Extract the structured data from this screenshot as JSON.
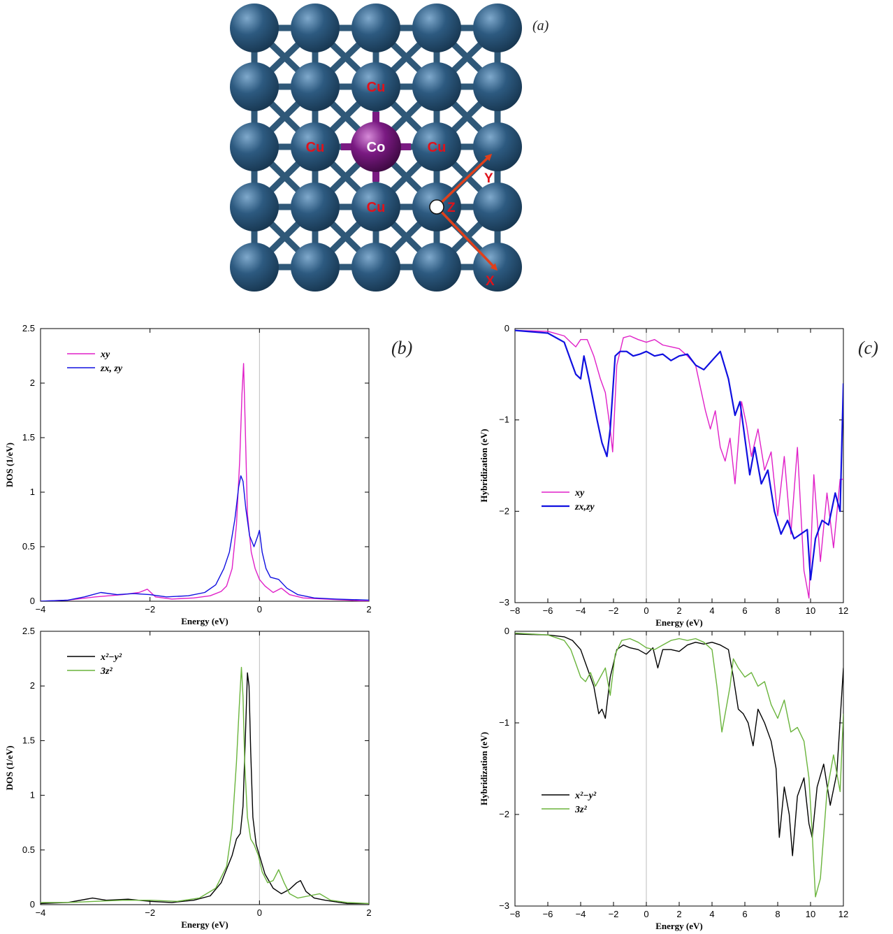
{
  "lattice": {
    "panel_label": "(a)",
    "atom_color": "#2d5a80",
    "co_color": "#7a1a82",
    "label_color": "#e0121b",
    "arrow_color": "#e0401b",
    "center_label": "Co",
    "neighbor_labels": [
      "Cu",
      "Cu",
      "Cu",
      "Cu"
    ],
    "axis_labels": {
      "x": "X",
      "y": "Y",
      "z": "Z"
    }
  },
  "chart_data": [
    {
      "id": "b-top",
      "type": "line",
      "panel_label": "(b)",
      "xlabel": "Energy (eV)",
      "ylabel": "DOS (1/eV)",
      "xlim": [
        -4,
        2
      ],
      "ylim": [
        0,
        2.5
      ],
      "xticks": [
        -4,
        -2,
        0,
        2
      ],
      "yticks": [
        0,
        0.5,
        1,
        1.5,
        2,
        2.5
      ],
      "grid": false,
      "legend_position": "top-left",
      "series": [
        {
          "name": "xy",
          "color": "#e020c8",
          "x": [
            -4,
            -3.5,
            -3,
            -2.5,
            -2.2,
            -2.05,
            -1.9,
            -1.6,
            -1.2,
            -0.9,
            -0.7,
            -0.6,
            -0.5,
            -0.42,
            -0.36,
            -0.32,
            -0.29,
            -0.26,
            -0.22,
            -0.15,
            -0.08,
            0,
            0.1,
            0.25,
            0.4,
            0.55,
            0.8,
            1.2,
            1.6,
            2
          ],
          "y": [
            0,
            0.01,
            0.04,
            0.06,
            0.08,
            0.11,
            0.04,
            0.02,
            0.03,
            0.05,
            0.09,
            0.14,
            0.3,
            0.7,
            1.3,
            1.9,
            2.18,
            1.6,
            0.8,
            0.45,
            0.3,
            0.2,
            0.14,
            0.08,
            0.12,
            0.06,
            0.03,
            0.02,
            0.01,
            0
          ]
        },
        {
          "name": "zx, zy",
          "color": "#1010e0",
          "x": [
            -4,
            -3.5,
            -3.2,
            -2.9,
            -2.6,
            -2.3,
            -2,
            -1.7,
            -1.3,
            -1,
            -0.8,
            -0.65,
            -0.55,
            -0.45,
            -0.38,
            -0.34,
            -0.3,
            -0.25,
            -0.18,
            -0.1,
            -0.03,
            0,
            0.05,
            0.12,
            0.2,
            0.35,
            0.5,
            0.7,
            1,
            1.4,
            2
          ],
          "y": [
            0,
            0.01,
            0.04,
            0.08,
            0.06,
            0.07,
            0.06,
            0.04,
            0.05,
            0.08,
            0.15,
            0.3,
            0.45,
            0.75,
            1.05,
            1.15,
            1.1,
            0.85,
            0.6,
            0.5,
            0.6,
            0.65,
            0.45,
            0.3,
            0.22,
            0.2,
            0.12,
            0.06,
            0.03,
            0.02,
            0.01
          ]
        }
      ]
    },
    {
      "id": "b-bottom",
      "type": "line",
      "xlabel": "Energy (eV)",
      "ylabel": "DOS (1/eV)",
      "xlim": [
        -4,
        2
      ],
      "ylim": [
        0,
        2.5
      ],
      "xticks": [
        -4,
        -2,
        0,
        2
      ],
      "yticks": [
        0,
        0.5,
        1,
        1.5,
        2,
        2.5
      ],
      "grid": false,
      "legend_position": "top-left",
      "series": [
        {
          "name": "x²−y²",
          "color": "#000000",
          "x": [
            -4,
            -3.5,
            -3.05,
            -2.8,
            -2.4,
            -2,
            -1.6,
            -1.2,
            -0.9,
            -0.7,
            -0.5,
            -0.42,
            -0.35,
            -0.3,
            -0.26,
            -0.22,
            -0.19,
            -0.16,
            -0.12,
            -0.06,
            0,
            0.1,
            0.25,
            0.4,
            0.55,
            0.68,
            0.75,
            0.85,
            1,
            1.2,
            1.6,
            2
          ],
          "y": [
            0.01,
            0.02,
            0.06,
            0.04,
            0.05,
            0.03,
            0.02,
            0.04,
            0.08,
            0.2,
            0.45,
            0.6,
            0.65,
            0.9,
            1.5,
            2.12,
            2.0,
            1.4,
            0.8,
            0.55,
            0.45,
            0.28,
            0.15,
            0.1,
            0.14,
            0.2,
            0.22,
            0.12,
            0.06,
            0.04,
            0.01,
            0.01
          ]
        },
        {
          "name": "3z²",
          "color": "#6ab43c",
          "x": [
            -4,
            -3.5,
            -3,
            -2.5,
            -2,
            -1.5,
            -1.1,
            -0.8,
            -0.6,
            -0.5,
            -0.42,
            -0.37,
            -0.33,
            -0.3,
            -0.27,
            -0.22,
            -0.16,
            -0.1,
            -0.02,
            0.05,
            0.15,
            0.25,
            0.35,
            0.45,
            0.55,
            0.7,
            0.9,
            1.1,
            1.3,
            1.6,
            2
          ],
          "y": [
            0.02,
            0.02,
            0.03,
            0.04,
            0.04,
            0.03,
            0.06,
            0.15,
            0.35,
            0.7,
            1.3,
            1.8,
            2.17,
            1.9,
            1.3,
            0.8,
            0.6,
            0.55,
            0.45,
            0.3,
            0.2,
            0.22,
            0.32,
            0.2,
            0.1,
            0.06,
            0.08,
            0.1,
            0.04,
            0.02,
            0.01
          ]
        }
      ]
    },
    {
      "id": "c-top",
      "type": "line",
      "panel_label": "(c)",
      "xlabel": "Energy (eV)",
      "ylabel": "Hybridization (eV)",
      "xlim": [
        -8,
        12
      ],
      "ylim": [
        -3,
        0
      ],
      "xticks": [
        -8,
        -6,
        -4,
        -2,
        0,
        2,
        4,
        6,
        8,
        10,
        12
      ],
      "yticks": [
        -3,
        -2,
        -1,
        0
      ],
      "grid": false,
      "legend_position": "bottom-left",
      "series": [
        {
          "name": "xy",
          "color": "#e020c8",
          "x": [
            -8,
            -6,
            -5,
            -4.6,
            -4.3,
            -4,
            -3.6,
            -3.2,
            -2.8,
            -2.5,
            -2.2,
            -2.05,
            -1.8,
            -1.4,
            -1,
            -0.5,
            0,
            0.5,
            1,
            1.5,
            2,
            2.5,
            3,
            3.3,
            3.6,
            3.9,
            4.2,
            4.5,
            4.8,
            5.1,
            5.4,
            5.8,
            6.1,
            6.4,
            6.8,
            7.2,
            7.6,
            8,
            8.4,
            8.8,
            9.2,
            9.6,
            9.9,
            10.2,
            10.6,
            11,
            11.4,
            11.8,
            12
          ],
          "y": [
            -0.02,
            -0.03,
            -0.08,
            -0.15,
            -0.2,
            -0.12,
            -0.12,
            -0.3,
            -0.55,
            -0.7,
            -1.1,
            -1.35,
            -0.4,
            -0.1,
            -0.08,
            -0.12,
            -0.15,
            -0.12,
            -0.18,
            -0.2,
            -0.22,
            -0.3,
            -0.4,
            -0.65,
            -0.9,
            -1.1,
            -0.9,
            -1.3,
            -1.45,
            -1.2,
            -1.7,
            -0.8,
            -1.05,
            -1.4,
            -1.1,
            -1.55,
            -1.35,
            -2.05,
            -1.4,
            -2.25,
            -1.3,
            -2.65,
            -2.95,
            -1.6,
            -2.55,
            -1.8,
            -2.4,
            -1.65,
            -1.65
          ]
        },
        {
          "name": "zx,zy",
          "color": "#1010e0",
          "x": [
            -8,
            -6,
            -5,
            -4.6,
            -4.3,
            -4,
            -3.8,
            -3.5,
            -3,
            -2.7,
            -2.4,
            -2.2,
            -1.9,
            -1.6,
            -1.2,
            -0.8,
            -0.4,
            0,
            0.5,
            1,
            1.5,
            2,
            2.5,
            3,
            3.5,
            4,
            4.5,
            5,
            5.4,
            5.7,
            6,
            6.3,
            6.6,
            7,
            7.4,
            7.8,
            8.2,
            8.6,
            9,
            9.4,
            9.8,
            10,
            10.3,
            10.7,
            11.1,
            11.5,
            11.8,
            12
          ],
          "y": [
            -0.02,
            -0.05,
            -0.15,
            -0.35,
            -0.5,
            -0.55,
            -0.3,
            -0.55,
            -1.0,
            -1.25,
            -1.4,
            -1.1,
            -0.3,
            -0.25,
            -0.25,
            -0.3,
            -0.28,
            -0.25,
            -0.3,
            -0.28,
            -0.35,
            -0.3,
            -0.28,
            -0.4,
            -0.45,
            -0.35,
            -0.25,
            -0.55,
            -0.95,
            -0.8,
            -1.2,
            -1.6,
            -1.3,
            -1.7,
            -1.55,
            -2.0,
            -2.25,
            -2.1,
            -2.3,
            -2.25,
            -2.2,
            -2.75,
            -2.3,
            -2.1,
            -2.15,
            -1.8,
            -2.0,
            -0.6
          ]
        }
      ]
    },
    {
      "id": "c-bottom",
      "type": "line",
      "xlabel": "Energy (eV)",
      "ylabel": "Hybridization (eV)",
      "xlim": [
        -8,
        12
      ],
      "ylim": [
        -3,
        0
      ],
      "xticks": [
        -8,
        -6,
        -4,
        -2,
        0,
        2,
        4,
        6,
        8,
        10,
        12
      ],
      "yticks": [
        -3,
        -2,
        -1,
        0
      ],
      "grid": false,
      "legend_position": "bottom-left",
      "series": [
        {
          "name": "x²−y²",
          "color": "#000000",
          "x": [
            -8,
            -6,
            -5,
            -4.5,
            -4,
            -3.6,
            -3.2,
            -2.9,
            -2.7,
            -2.5,
            -2.2,
            -1.8,
            -1.4,
            -1,
            -0.5,
            0,
            0.4,
            0.7,
            1,
            1.5,
            2,
            2.5,
            3,
            3.5,
            4,
            4.5,
            5,
            5.3,
            5.6,
            5.9,
            6.2,
            6.5,
            6.8,
            7.2,
            7.6,
            7.9,
            8.1,
            8.4,
            8.7,
            8.9,
            9.2,
            9.6,
            9.9,
            10.1,
            10.4,
            10.8,
            11.2,
            11.6,
            12
          ],
          "y": [
            -0.03,
            -0.04,
            -0.06,
            -0.1,
            -0.2,
            -0.4,
            -0.6,
            -0.9,
            -0.85,
            -0.95,
            -0.5,
            -0.2,
            -0.15,
            -0.18,
            -0.2,
            -0.25,
            -0.18,
            -0.4,
            -0.2,
            -0.2,
            -0.22,
            -0.15,
            -0.12,
            -0.14,
            -0.12,
            -0.15,
            -0.2,
            -0.5,
            -0.85,
            -0.9,
            -1.0,
            -1.25,
            -0.85,
            -1.0,
            -1.2,
            -1.5,
            -2.25,
            -1.7,
            -2.0,
            -2.45,
            -1.8,
            -1.6,
            -2.1,
            -2.25,
            -1.7,
            -1.45,
            -1.9,
            -1.55,
            -0.4
          ]
        },
        {
          "name": "3z²",
          "color": "#6ab43c",
          "x": [
            -8,
            -6,
            -5,
            -4.6,
            -4.3,
            -4,
            -3.7,
            -3.4,
            -3.1,
            -2.8,
            -2.5,
            -2.2,
            -1.9,
            -1.5,
            -1,
            -0.5,
            0,
            0.5,
            1,
            1.5,
            2,
            2.5,
            3,
            3.5,
            4,
            4.3,
            4.6,
            4.9,
            5.1,
            5.3,
            5.6,
            6,
            6.4,
            6.8,
            7.2,
            7.6,
            8,
            8.4,
            8.8,
            9.2,
            9.6,
            9.9,
            10.1,
            10.3,
            10.6,
            11,
            11.4,
            11.8,
            12
          ],
          "y": [
            -0.02,
            -0.04,
            -0.1,
            -0.2,
            -0.35,
            -0.5,
            -0.55,
            -0.45,
            -0.6,
            -0.5,
            -0.4,
            -0.7,
            -0.25,
            -0.1,
            -0.08,
            -0.12,
            -0.18,
            -0.2,
            -0.15,
            -0.1,
            -0.08,
            -0.1,
            -0.08,
            -0.12,
            -0.2,
            -0.6,
            -1.1,
            -0.8,
            -0.6,
            -0.3,
            -0.4,
            -0.5,
            -0.45,
            -0.6,
            -0.55,
            -0.8,
            -0.95,
            -0.75,
            -1.1,
            -1.05,
            -1.2,
            -1.6,
            -2.2,
            -2.9,
            -2.7,
            -1.75,
            -1.35,
            -1.75,
            -0.9
          ]
        }
      ]
    }
  ]
}
